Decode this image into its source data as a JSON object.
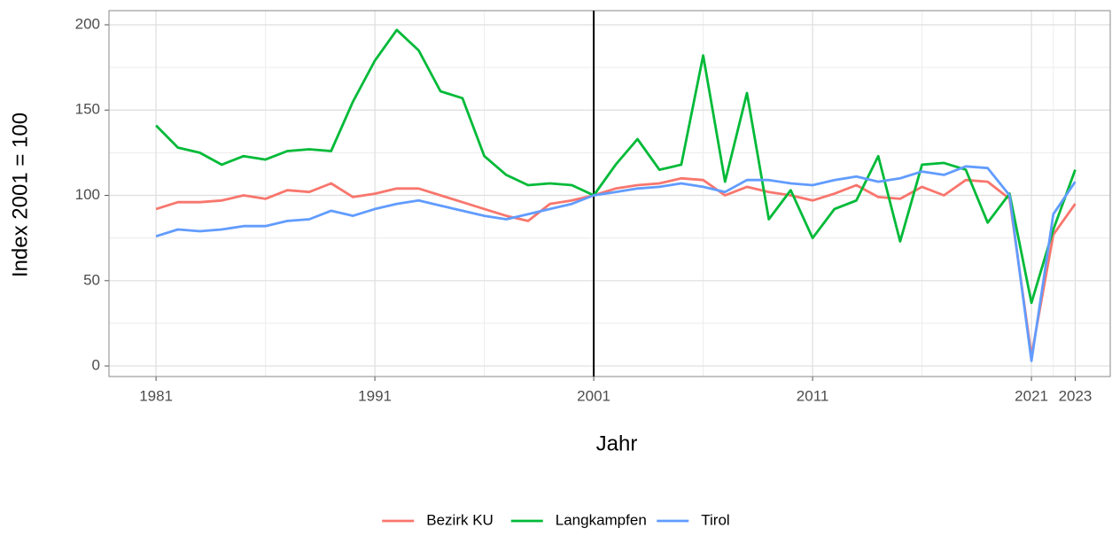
{
  "chart_data": {
    "type": "line",
    "x": [
      1981,
      1982,
      1983,
      1984,
      1985,
      1986,
      1987,
      1988,
      1989,
      1990,
      1991,
      1992,
      1993,
      1994,
      1995,
      1996,
      1997,
      1998,
      1999,
      2000,
      2001,
      2002,
      2003,
      2004,
      2005,
      2006,
      2007,
      2008,
      2009,
      2010,
      2011,
      2012,
      2013,
      2014,
      2015,
      2016,
      2017,
      2018,
      2019,
      2020,
      2021,
      2022,
      2023
    ],
    "series": [
      {
        "name": "Bezirk KU",
        "color": "#F8766D",
        "values": [
          92,
          96,
          96,
          97,
          100,
          98,
          103,
          102,
          107,
          99,
          101,
          104,
          104,
          100,
          96,
          92,
          88,
          85,
          95,
          97,
          100,
          104,
          106,
          107,
          110,
          109,
          100,
          105,
          102,
          100,
          97,
          101,
          106,
          99,
          98,
          105,
          100,
          109,
          108,
          98,
          6,
          77,
          95
        ]
      },
      {
        "name": "Langkampfen",
        "color": "#00BA38",
        "values": [
          141,
          128,
          125,
          118,
          123,
          121,
          126,
          127,
          126,
          155,
          179,
          197,
          185,
          161,
          157,
          123,
          112,
          106,
          107,
          106,
          100,
          118,
          133,
          115,
          118,
          182,
          108,
          160,
          86,
          103,
          75,
          92,
          97,
          123,
          73,
          118,
          119,
          115,
          84,
          101,
          37,
          80,
          115
        ]
      },
      {
        "name": "Tirol",
        "color": "#619CFF",
        "values": [
          76,
          80,
          79,
          80,
          82,
          82,
          85,
          86,
          91,
          88,
          92,
          95,
          97,
          94,
          91,
          88,
          86,
          89,
          92,
          95,
          100,
          102,
          104,
          105,
          107,
          105,
          102,
          109,
          109,
          107,
          106,
          109,
          111,
          108,
          110,
          114,
          112,
          117,
          116,
          100,
          3,
          89,
          108
        ]
      }
    ],
    "xlabel": "Jahr",
    "ylabel": "Index 2001 = 100",
    "xlim": [
      1978.85,
      2024.6
    ],
    "ylim": [
      -6.2,
      208.3
    ],
    "xticks": [
      1981,
      1991,
      2001,
      2011,
      2021,
      2023
    ],
    "yticks": [
      0,
      50,
      100,
      150,
      200
    ],
    "xminor": [
      1986,
      1996,
      2006,
      2016,
      2022
    ],
    "yminor": [
      25,
      75,
      125,
      175
    ],
    "vline": 2001,
    "grid": true,
    "legend": "bottom"
  }
}
